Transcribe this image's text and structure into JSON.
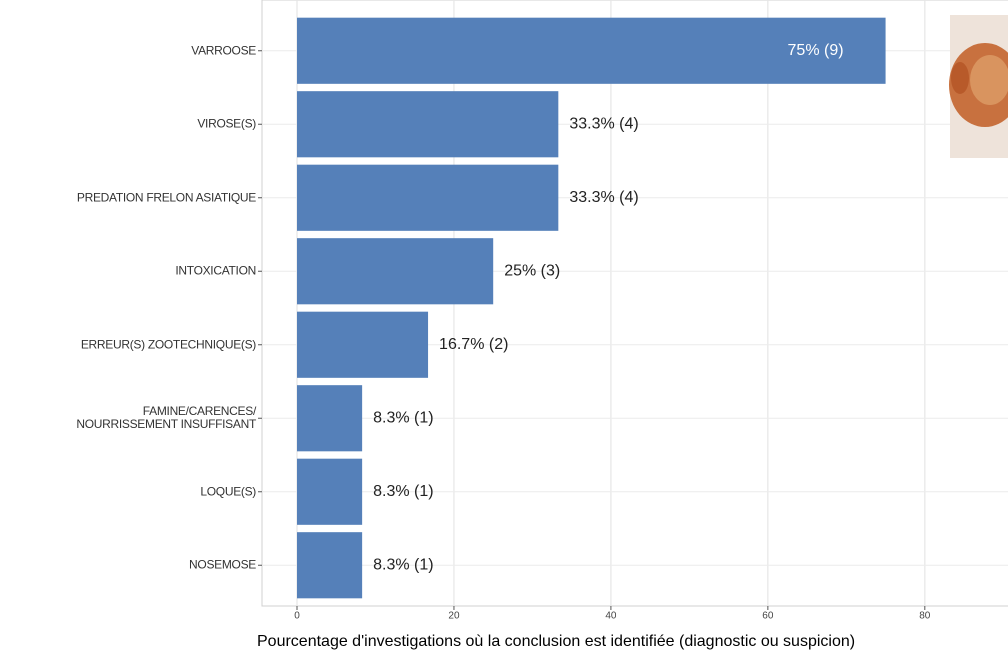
{
  "chart_data": {
    "type": "barh",
    "categories": [
      "VARROOSE",
      "VIROSE(S)",
      "PREDATION FRELON ASIATIQUE",
      "INTOXICATION",
      "ERREUR(S) ZOOTECHNIQUE(S)",
      "FAMINE/CARENCES/\nNOURRISSEMENT INSUFFISANT",
      "LOQUE(S)",
      "NOSEMOSE"
    ],
    "values": [
      75,
      33.3,
      33.3,
      25,
      16.7,
      8.3,
      8.3,
      8.3
    ],
    "value_labels": [
      "75% (9)",
      "33.3% (4)",
      "33.3% (4)",
      "25% (3)",
      "16.7% (2)",
      "8.3% (1)",
      "8.3% (1)",
      "8.3% (1)"
    ],
    "color": "#5580b9",
    "xlim": [
      -4.46,
      90.6
    ],
    "xticks": [
      0,
      20,
      40,
      60,
      80
    ],
    "grid": true,
    "xlabel": "Pourcentage d'investigations où la conclusion est identifiée (diagnostic ou suspicion)"
  }
}
